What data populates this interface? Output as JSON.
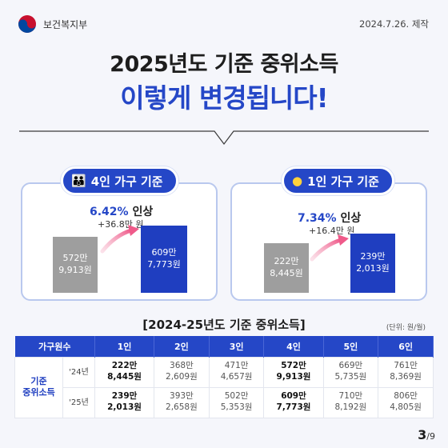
{
  "header": {
    "org": "보건복지부",
    "date": "2024.7.26. 제작"
  },
  "title": {
    "line1": "2025년도 기준 중위소득",
    "line2": "이렇게 변경됩니다!"
  },
  "cards": [
    {
      "label": "4인 가구 기준",
      "icon": "family-icon",
      "rate": "6.42%",
      "rate_suffix": "인상",
      "increase": "+36.8만 원",
      "old_line1": "572만",
      "old_line2": "9,913원",
      "new_line1": "609만",
      "new_line2": "7,773원",
      "old_value": 5729913,
      "new_value": 6097773
    },
    {
      "label": "1인 가구 기준",
      "icon": "person-icon",
      "rate": "7.34%",
      "rate_suffix": "인상",
      "increase": "+16.4만 원",
      "old_line1": "222만",
      "old_line2": "8,445원",
      "new_line1": "239만",
      "new_line2": "2,013원",
      "old_value": 2228445,
      "new_value": 2392013
    }
  ],
  "table": {
    "title": "[2024-25년도 기준 중위소득]",
    "unit": "(단위: 원/월)",
    "header_first": "가구원수",
    "columns": [
      "1인",
      "2인",
      "3인",
      "4인",
      "5인",
      "6인"
    ],
    "row_label_1": "기준",
    "row_label_2": "중위소득",
    "rows": [
      {
        "year": "'24년",
        "cells": [
          {
            "a": "222만",
            "b": "8,445원"
          },
          {
            "a": "368만",
            "b": "2,609원"
          },
          {
            "a": "471만",
            "b": "4,657원"
          },
          {
            "a": "572만",
            "b": "9,913원"
          },
          {
            "a": "669만",
            "b": "5,735원"
          },
          {
            "a": "761만",
            "b": "8,369원"
          }
        ]
      },
      {
        "year": "'25년",
        "cells": [
          {
            "a": "239만",
            "b": "2,013원"
          },
          {
            "a": "393만",
            "b": "2,658원"
          },
          {
            "a": "502만",
            "b": "5,353원"
          },
          {
            "a": "609만",
            "b": "7,773원"
          },
          {
            "a": "710만",
            "b": "8,192원"
          },
          {
            "a": "806만",
            "b": "4,805원"
          }
        ]
      }
    ]
  },
  "pager": {
    "current": "3",
    "total": "/9"
  },
  "colors": {
    "brand_blue": "#2547c7",
    "bar_old": "#9e9e9e",
    "bar_new": "#1f3ec0",
    "arrow": "#ef5a8a"
  }
}
